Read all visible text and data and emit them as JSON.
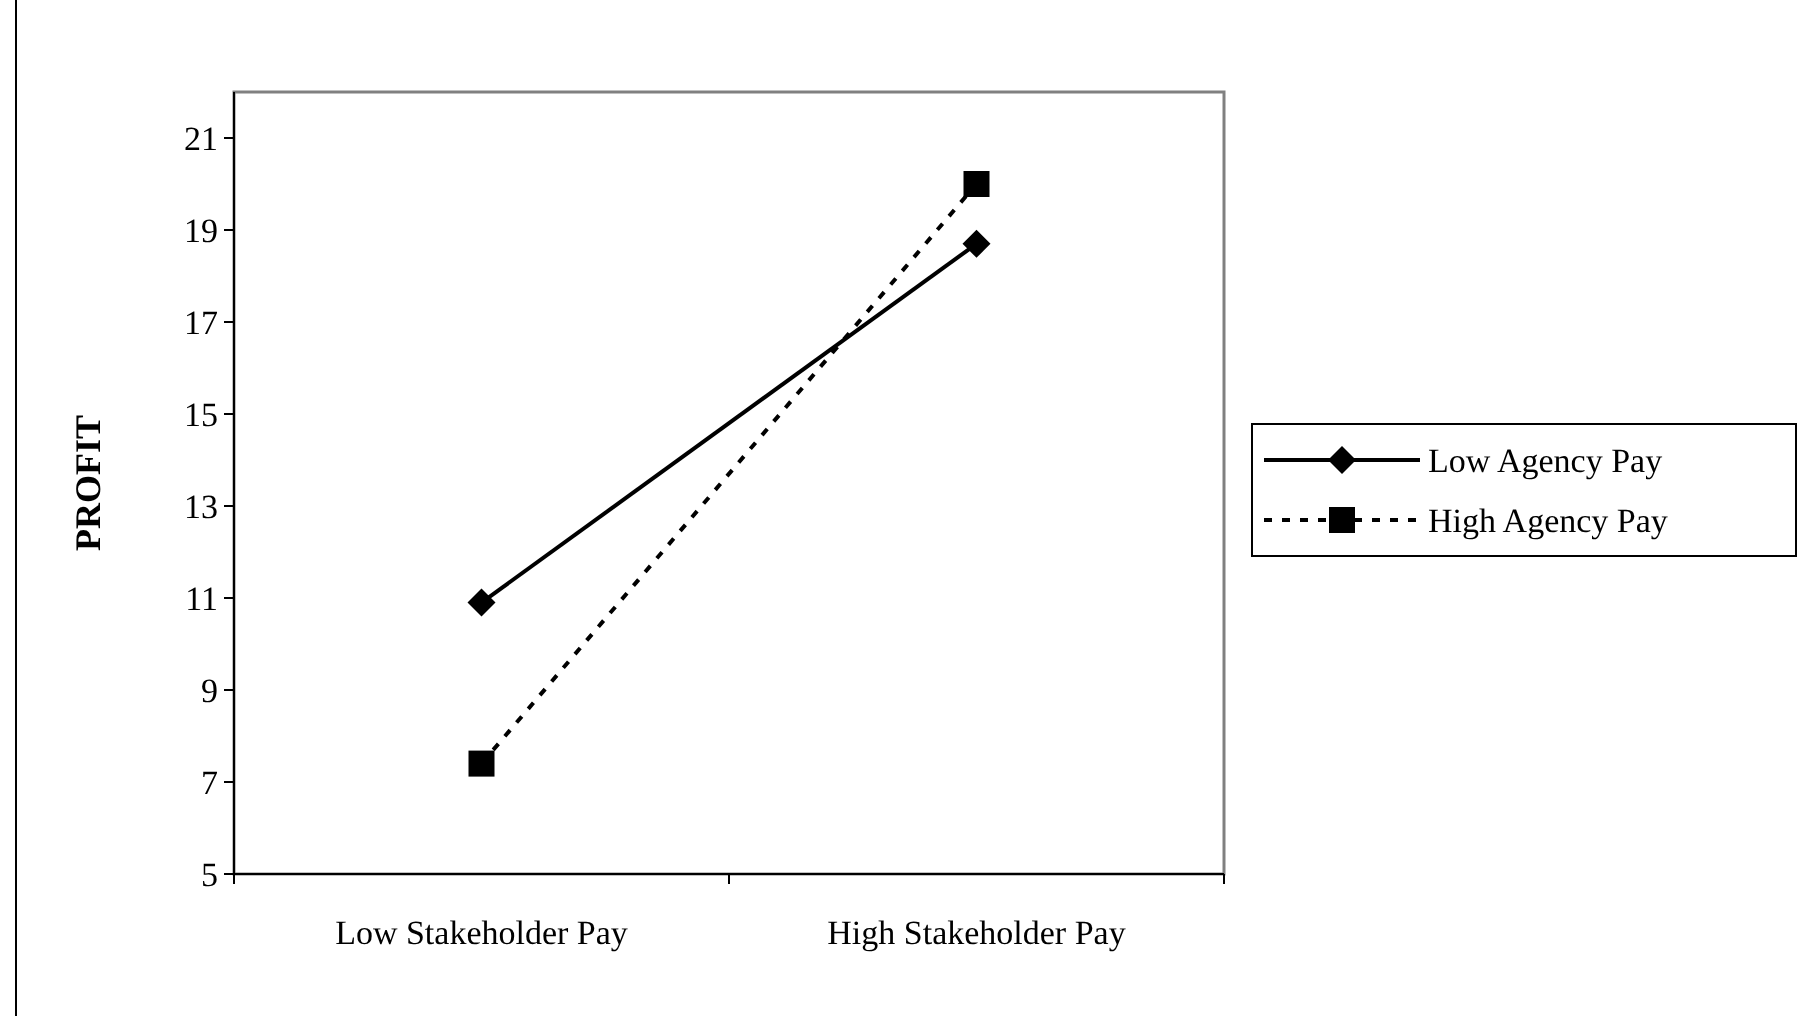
{
  "chart_data": {
    "type": "line",
    "ylabel": "PROFIT",
    "categories": [
      "Low Stakeholder Pay",
      "High Stakeholder Pay"
    ],
    "ylim": [
      5,
      22
    ],
    "yticks": [
      5,
      7,
      9,
      11,
      13,
      15,
      17,
      19,
      21
    ],
    "grid": false,
    "legend": "right",
    "series": [
      {
        "name": "Low Agency Pay",
        "color": "#000000",
        "values": [
          10.9,
          18.7
        ],
        "marker": "diamond",
        "line_style": "solid"
      },
      {
        "name": "High Agency Pay",
        "color": "#000000",
        "values": [
          7.4,
          20.0
        ],
        "marker": "square",
        "line_style": "dotted"
      }
    ]
  }
}
